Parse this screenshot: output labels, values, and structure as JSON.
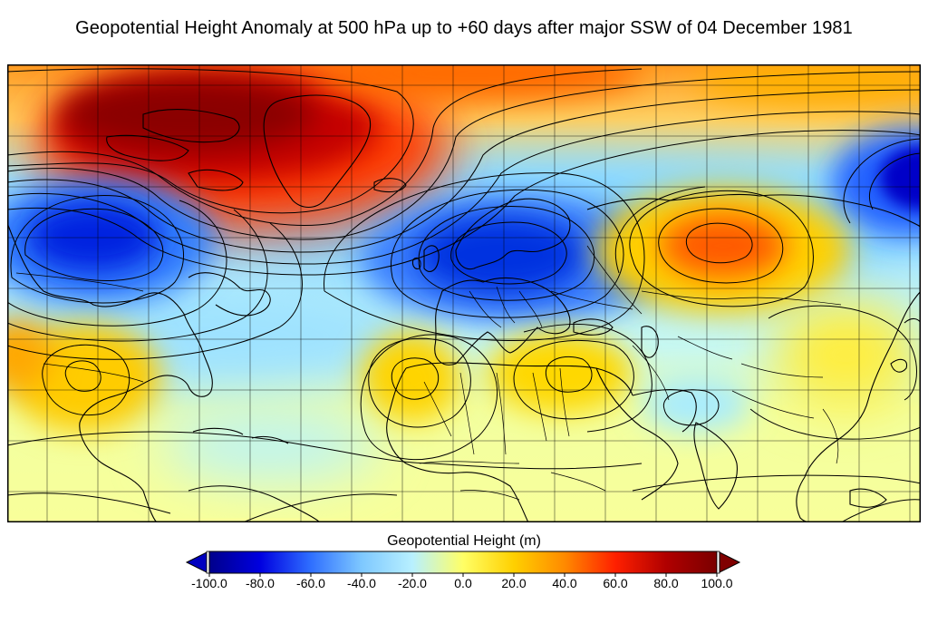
{
  "title": "Geopotential Height Anomaly at 500 hPa up to +60 days after major SSW of 04 December 1981",
  "colorbar": {
    "label": "Geopotential Height (m)",
    "ticks": [
      "-100.0",
      "-80.0",
      "-60.0",
      "-40.0",
      "-20.0",
      "0.0",
      "20.0",
      "40.0",
      "60.0",
      "80.0",
      "100.0"
    ],
    "range": [
      -100,
      100
    ],
    "extend": "both",
    "stops": [
      "#00008b",
      "#0000e0",
      "#2f6fff",
      "#7ec8ff",
      "#b8f0ff",
      "#ffff66",
      "#ffd000",
      "#ff8a00",
      "#ff2000",
      "#b00000",
      "#7a0000"
    ]
  },
  "map": {
    "projection": "equirectangular",
    "region": "North Atlantic, Europe, North Africa, Asia",
    "grid": true,
    "anomaly_centers": [
      {
        "name": "greenland-high",
        "value": 95
      },
      {
        "name": "north-america-low",
        "value": -80
      },
      {
        "name": "europe-low",
        "value": -85
      },
      {
        "name": "siberia-high",
        "value": 55
      },
      {
        "name": "east-asia-low",
        "value": -90
      },
      {
        "name": "north-africa-high",
        "value": 20
      },
      {
        "name": "middle-east-high",
        "value": 20
      },
      {
        "name": "mexico-high",
        "value": 20
      }
    ]
  }
}
